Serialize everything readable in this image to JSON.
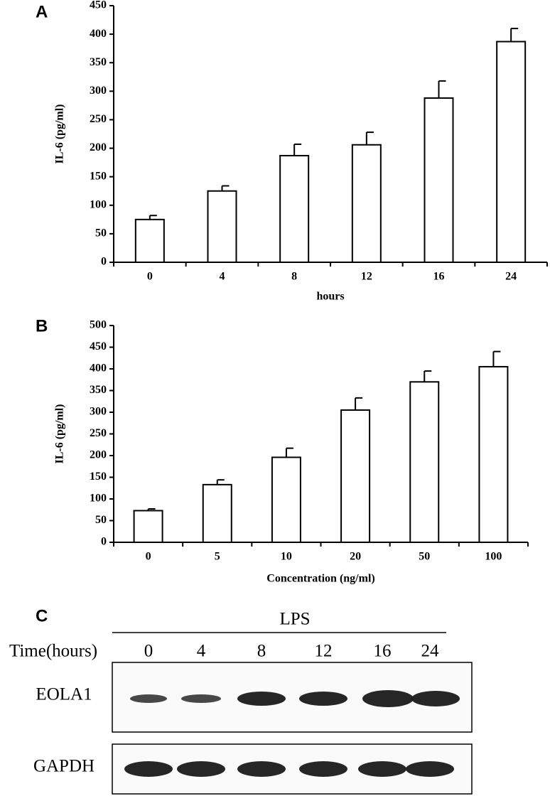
{
  "chart_data": [
    {
      "type": "bar",
      "panel": "A",
      "y_label": "IL-6 (pg/ml)",
      "x_label": "hours",
      "categories": [
        "0",
        "4",
        "8",
        "12",
        "16",
        "24"
      ],
      "values": [
        75,
        125,
        187,
        206,
        288,
        387
      ],
      "errors": [
        7,
        9,
        20,
        22,
        30,
        23
      ],
      "color": "#ffffff",
      "ylim": [
        0,
        450
      ],
      "yticks": [
        0,
        50,
        100,
        150,
        200,
        250,
        300,
        350,
        400,
        450
      ]
    },
    {
      "type": "bar",
      "panel": "B",
      "y_label": "IL-6 (pg/ml)",
      "x_label": "Concentration (ng/ml)",
      "categories": [
        "0",
        "5",
        "10",
        "20",
        "50",
        "100"
      ],
      "values": [
        73,
        133,
        196,
        305,
        370,
        405
      ],
      "errors": [
        4,
        11,
        21,
        28,
        25,
        35
      ],
      "color": "#ffffff",
      "ylim": [
        0,
        500
      ],
      "yticks": [
        0,
        50,
        100,
        150,
        200,
        250,
        300,
        350,
        400,
        450,
        500
      ]
    }
  ],
  "blot": {
    "panel": "C",
    "treatment": "LPS",
    "time_label": "Time(hours)",
    "lanes": [
      "0",
      "4",
      "8",
      "12",
      "16",
      "24"
    ],
    "rows": [
      "EOLA1",
      "GAPDH"
    ]
  }
}
